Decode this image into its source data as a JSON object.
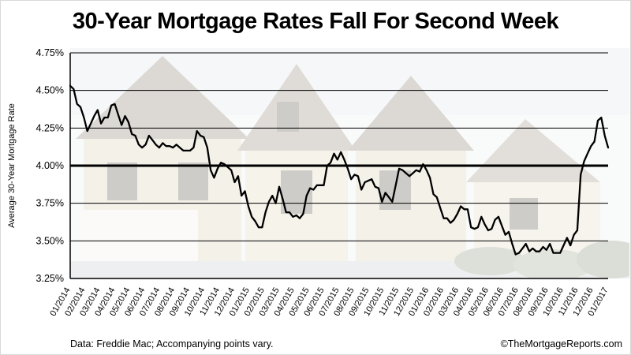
{
  "title": "30-Year Mortgage Rates Fall For Second Week",
  "y_axis_label": "Average 30-Year Mortgage Rate",
  "footer": {
    "source_note": "Data: Freddie Mac; Accompanying points vary.",
    "credit": "©TheMortgageReports.com"
  },
  "colors": {
    "line": "#000000",
    "grid": "#000000",
    "text": "#000000",
    "background": "#ffffff"
  },
  "chart_data": {
    "type": "line",
    "title": "30-Year Mortgage Rates Fall For Second Week",
    "ylabel": "Average 30-Year Mortgage Rate",
    "unit": "percent",
    "frequency": "weekly",
    "grid": true,
    "legend": false,
    "ylim": [
      3.25,
      4.75
    ],
    "y_ticks": [
      4.75,
      4.5,
      4.25,
      4.0,
      3.75,
      3.5,
      3.25
    ],
    "y_tick_labels": [
      "4.75%",
      "4.50%",
      "4.25%",
      "4.00%",
      "3.75%",
      "3.50%",
      "3.25%"
    ],
    "emphasis_gridline": 4.0,
    "x_tick_labels": [
      "01/2014",
      "02/2014",
      "03/2014",
      "04/2014",
      "05/2014",
      "06/2014",
      "07/2014",
      "08/2014",
      "09/2014",
      "10/2014",
      "11/2014",
      "12/2014",
      "01/2015",
      "02/2015",
      "03/2015",
      "04/2015",
      "05/2015",
      "06/2015",
      "07/2015",
      "08/2015",
      "09/2015",
      "10/2015",
      "11/2015",
      "12/2015",
      "01/2016",
      "02/2016",
      "03/2016",
      "04/2016",
      "05/2016",
      "06/2016",
      "07/2016",
      "08/2016",
      "09/2016",
      "10/2016",
      "11/2016",
      "12/2016",
      "01/2017"
    ],
    "series": [
      {
        "name": "Average 30-Year Mortgage Rate",
        "values": [
          4.53,
          4.51,
          4.41,
          4.39,
          4.32,
          4.23,
          4.28,
          4.33,
          4.37,
          4.28,
          4.32,
          4.32,
          4.4,
          4.41,
          4.34,
          4.27,
          4.33,
          4.29,
          4.21,
          4.2,
          4.14,
          4.12,
          4.14,
          4.2,
          4.17,
          4.14,
          4.12,
          4.15,
          4.13,
          4.13,
          4.12,
          4.14,
          4.12,
          4.1,
          4.1,
          4.1,
          4.12,
          4.23,
          4.2,
          4.19,
          4.12,
          3.97,
          3.92,
          3.98,
          4.02,
          4.01,
          3.99,
          3.97,
          3.89,
          3.93,
          3.8,
          3.83,
          3.73,
          3.66,
          3.63,
          3.59,
          3.59,
          3.69,
          3.76,
          3.8,
          3.75,
          3.86,
          3.78,
          3.69,
          3.69,
          3.66,
          3.67,
          3.65,
          3.68,
          3.8,
          3.85,
          3.84,
          3.87,
          3.87,
          3.87,
          4.0,
          4.02,
          4.08,
          4.04,
          4.09,
          4.04,
          3.98,
          3.91,
          3.94,
          3.93,
          3.84,
          3.89,
          3.9,
          3.91,
          3.86,
          3.85,
          3.76,
          3.82,
          3.79,
          3.76,
          3.87,
          3.98,
          3.97,
          3.95,
          3.93,
          3.95,
          3.97,
          3.96,
          4.01,
          3.97,
          3.92,
          3.81,
          3.79,
          3.72,
          3.65,
          3.65,
          3.62,
          3.64,
          3.68,
          3.73,
          3.71,
          3.71,
          3.59,
          3.58,
          3.59,
          3.66,
          3.61,
          3.57,
          3.58,
          3.64,
          3.66,
          3.6,
          3.54,
          3.56,
          3.48,
          3.41,
          3.42,
          3.45,
          3.48,
          3.43,
          3.45,
          3.43,
          3.43,
          3.46,
          3.44,
          3.48,
          3.42,
          3.42,
          3.42,
          3.47,
          3.52,
          3.47,
          3.54,
          3.57,
          3.94,
          4.03,
          4.08,
          4.13,
          4.16,
          4.3,
          4.32,
          4.2,
          4.12
        ]
      }
    ]
  }
}
